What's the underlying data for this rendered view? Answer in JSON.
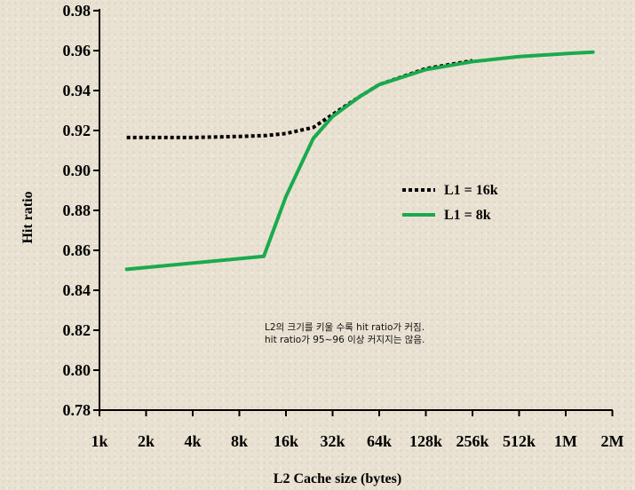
{
  "chart_data": {
    "type": "line",
    "title": "",
    "xlabel": "L2 Cache size (bytes)",
    "ylabel": "Hit ratio",
    "categories": [
      "1k",
      "2k",
      "4k",
      "8k",
      "16k",
      "32k",
      "64k",
      "128k",
      "256k",
      "512k",
      "1M",
      "2M"
    ],
    "yticks": [
      "0.78",
      "0.80",
      "0.82",
      "0.84",
      "0.86",
      "0.88",
      "0.90",
      "0.92",
      "0.94",
      "0.96",
      "0.98"
    ],
    "ylim": [
      0.78,
      0.98
    ],
    "grid": false,
    "legend_position": "right-middle",
    "series": [
      {
        "name": "L1 = 16k",
        "style": "dotted",
        "color": "#000000",
        "points": [
          [
            1.5,
            0.9165
          ],
          [
            2,
            0.9165
          ],
          [
            4,
            0.9165
          ],
          [
            8,
            0.917
          ],
          [
            12,
            0.9175
          ],
          [
            16,
            0.9185
          ],
          [
            24,
            0.9215
          ],
          [
            32,
            0.928
          ],
          [
            48,
            0.937
          ],
          [
            64,
            0.943
          ],
          [
            128,
            0.951
          ],
          [
            256,
            0.955
          ]
        ]
      },
      {
        "name": "L1 = 8k",
        "style": "solid",
        "color": "#1aaa4e",
        "points": [
          [
            1.5,
            0.8505
          ],
          [
            11.5,
            0.857
          ],
          [
            16,
            0.887
          ],
          [
            24,
            0.916
          ],
          [
            32,
            0.927
          ],
          [
            48,
            0.937
          ],
          [
            64,
            0.943
          ],
          [
            128,
            0.9505
          ],
          [
            256,
            0.9545
          ],
          [
            512,
            0.957
          ],
          [
            1024,
            0.9585
          ],
          [
            1536,
            0.9592
          ]
        ]
      }
    ]
  },
  "annotation": {
    "line1": "L2의 크기를 키울 수록 hit ratio가 커짐.",
    "line2": "hit ratio가 95~96 이상 커지지는 않음."
  }
}
